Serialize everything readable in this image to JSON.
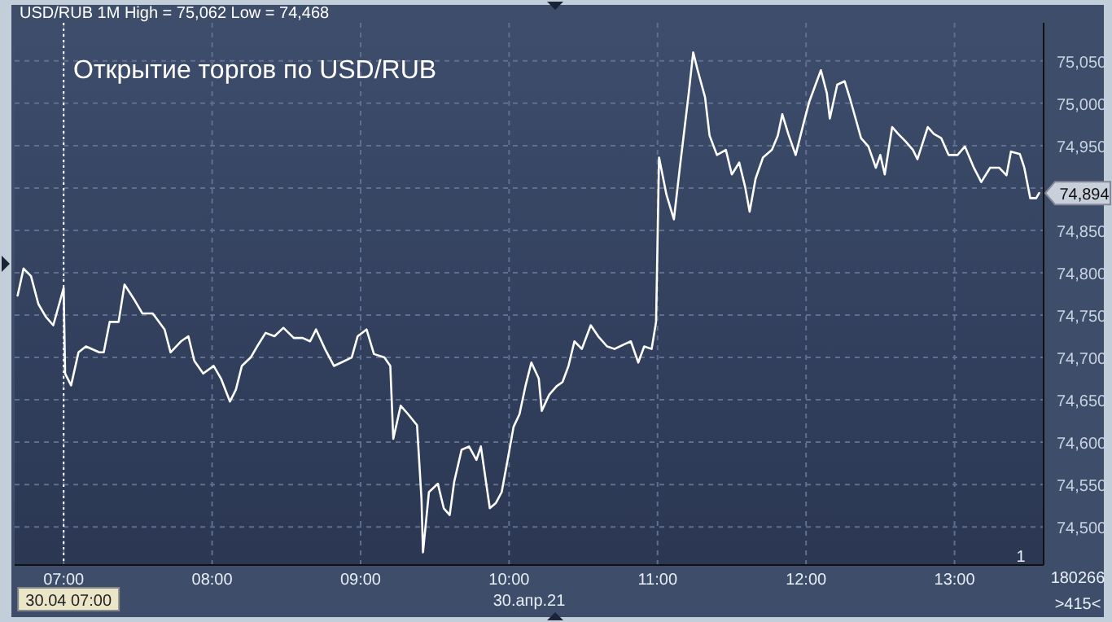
{
  "chart_data": {
    "type": "line",
    "title": "Открытие торгов по USD/RUB",
    "annotations": [
      "USD/RUB 1M High = 75,062 Low = 74,468",
      "30.апр.21",
      "180266",
      ">415<",
      "1",
      {
        "text": "74,894",
        "x": 13.6,
        "y": 74894
      }
    ],
    "xlim": [
      6.67,
      13.6
    ],
    "xticks": [
      {
        "value": 7,
        "label": "07:00"
      },
      {
        "value": 8,
        "label": "08:00"
      },
      {
        "value": 9,
        "label": "09:00"
      },
      {
        "value": 10,
        "label": "10:00"
      },
      {
        "value": 11,
        "label": "11:00"
      },
      {
        "value": 12,
        "label": "12:00"
      },
      {
        "value": 13,
        "label": "13:00"
      }
    ],
    "ylim": [
      74455,
      75095
    ],
    "yticks": [
      {
        "value": 74500,
        "label": "74,500"
      },
      {
        "value": 74550,
        "label": "74,550"
      },
      {
        "value": 74600,
        "label": "74,600"
      },
      {
        "value": 74650,
        "label": "74,650"
      },
      {
        "value": 74700,
        "label": "74,700"
      },
      {
        "value": 74750,
        "label": "74,750"
      },
      {
        "value": 74800,
        "label": "74,800"
      },
      {
        "value": 74850,
        "label": "74,850"
      },
      {
        "value": 74900,
        "label": null
      },
      {
        "value": 74950,
        "label": "74,950"
      },
      {
        "value": 75000,
        "label": "75,000"
      },
      {
        "value": 75050,
        "label": "75,050"
      }
    ],
    "grid": true,
    "marker": "none",
    "line_style": "solid",
    "ref_lines": [
      {
        "axis": "x",
        "value": 7,
        "label": "30.04 07:00",
        "line_style": "dotted",
        "color": "#ffffff"
      }
    ],
    "series": [
      {
        "color": "#ffffff",
        "x": [
          6.69,
          6.73,
          6.78,
          6.83,
          6.88,
          6.93,
          6.97,
          7.0,
          7.01,
          7.05,
          7.1,
          7.15,
          7.24,
          7.27,
          7.31,
          7.37,
          7.41,
          7.48,
          7.53,
          7.6,
          7.68,
          7.72,
          7.79,
          7.84,
          7.88,
          7.94,
          8.01,
          8.06,
          8.12,
          8.16,
          8.2,
          8.26,
          8.31,
          8.36,
          8.42,
          8.48,
          8.55,
          8.61,
          8.66,
          8.7,
          8.76,
          8.82,
          8.87,
          8.94,
          8.98,
          9.04,
          9.09,
          9.16,
          9.2,
          9.22,
          9.27,
          9.32,
          9.38,
          9.41,
          9.42,
          9.46,
          9.52,
          9.56,
          9.6,
          9.63,
          9.68,
          9.73,
          9.78,
          9.81,
          9.87,
          9.91,
          9.95,
          9.99,
          10.03,
          10.07,
          10.11,
          10.15,
          10.2,
          10.22,
          10.27,
          10.32,
          10.36,
          10.4,
          10.44,
          10.49,
          10.55,
          10.6,
          10.66,
          10.71,
          10.77,
          10.82,
          10.87,
          10.91,
          10.96,
          10.99,
          11.01,
          11.06,
          11.11,
          11.15,
          11.21,
          11.24,
          11.27,
          11.32,
          11.35,
          11.4,
          11.46,
          11.5,
          11.55,
          11.59,
          11.62,
          11.66,
          11.71,
          11.77,
          11.81,
          11.84,
          11.88,
          11.93,
          11.98,
          12.02,
          12.06,
          12.1,
          12.14,
          12.16,
          12.21,
          12.26,
          12.3,
          12.34,
          12.37,
          12.42,
          12.47,
          12.5,
          12.53,
          12.58,
          12.62,
          12.67,
          12.72,
          12.75,
          12.82,
          12.86,
          12.91,
          12.96,
          13.02,
          13.07,
          13.13,
          13.18,
          13.24,
          13.3,
          13.35,
          13.38,
          13.44,
          13.47,
          13.51,
          13.55,
          13.57
        ],
        "values": [
          74773,
          74805,
          74796,
          74763,
          74748,
          74738,
          74763,
          74782,
          74681,
          74667,
          74706,
          74713,
          74706,
          74706,
          74742,
          74742,
          74786,
          74767,
          74752,
          74752,
          74733,
          74706,
          74719,
          74725,
          74696,
          74681,
          74690,
          74675,
          74648,
          74662,
          74690,
          74700,
          74715,
          74729,
          74725,
          74735,
          74723,
          74723,
          74719,
          74733,
          74710,
          74690,
          74694,
          74700,
          74725,
          74733,
          74704,
          74700,
          74690,
          74604,
          74643,
          74633,
          74620,
          74533,
          74470,
          74541,
          74551,
          74522,
          74514,
          74553,
          74591,
          74595,
          74579,
          74595,
          74522,
          74528,
          74541,
          74579,
          74618,
          74633,
          74666,
          74694,
          74675,
          74637,
          74656,
          74666,
          74671,
          74690,
          74719,
          74710,
          74738,
          74725,
          74713,
          74710,
          74715,
          74719,
          74694,
          74713,
          74710,
          74742,
          74936,
          74892,
          74863,
          74924,
          75012,
          75060,
          75039,
          75007,
          74962,
          74939,
          74945,
          74916,
          74930,
          74901,
          74872,
          74911,
          74936,
          74945,
          74962,
          74987,
          74964,
          74939,
          74974,
          75001,
          75020,
          75039,
          75012,
          74982,
          75022,
          75026,
          75003,
          74978,
          74959,
          74949,
          74924,
          74939,
          74916,
          74972,
          74964,
          74955,
          74945,
          74934,
          74972,
          74964,
          74959,
          74939,
          74939,
          74949,
          74924,
          74907,
          74924,
          74924,
          74915,
          74943,
          74940,
          74924,
          74888,
          74888,
          74894
        ]
      }
    ]
  }
}
